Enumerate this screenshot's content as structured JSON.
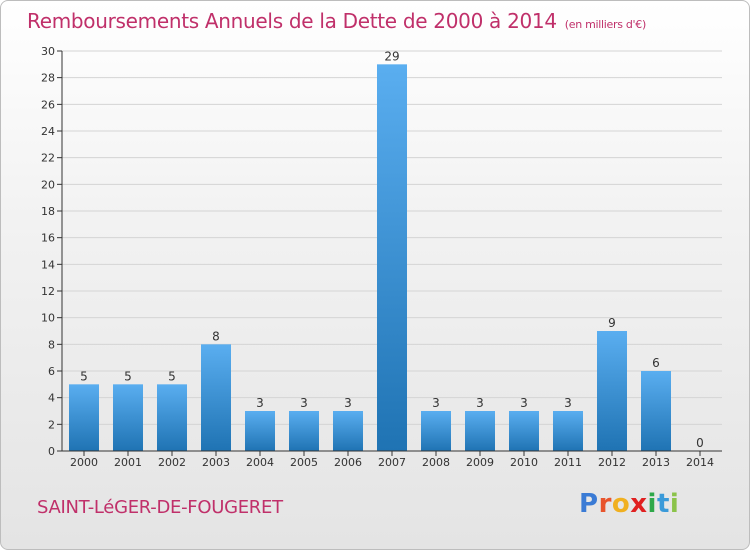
{
  "title": "Remboursements Annuels de la Dette de 2000 à 2014",
  "subtitle": "(en milliers d'€)",
  "place": "SAINT-LéGER-DE-FOUGERET",
  "logo": {
    "letters": [
      "P",
      "r",
      "o",
      "x",
      "i",
      "t",
      "i"
    ],
    "colors": [
      "#3a7bd5",
      "#e8542c",
      "#f0b020",
      "#e02020",
      "#2ea84a",
      "#3a9ad9",
      "#8bc34a"
    ]
  },
  "colors": {
    "bar_light": "#5aaef0",
    "bar_dark": "#1f73b3",
    "title": "#c0306a",
    "grid": "#d4d4d4",
    "axis": "#333333"
  },
  "chart_data": {
    "type": "bar",
    "title": "Remboursements Annuels de la Dette de 2000 à 2014",
    "subtitle": "(en milliers d'€)",
    "categories": [
      "2000",
      "2001",
      "2002",
      "2003",
      "2004",
      "2005",
      "2006",
      "2007",
      "2008",
      "2009",
      "2010",
      "2011",
      "2012",
      "2013",
      "2014"
    ],
    "values": [
      5,
      5,
      5,
      8,
      3,
      3,
      3,
      29,
      3,
      3,
      3,
      3,
      9,
      6,
      0
    ],
    "xlabel": "",
    "ylabel": "",
    "ylim": [
      0,
      30
    ],
    "yticks": [
      0,
      2,
      4,
      6,
      8,
      10,
      12,
      14,
      16,
      18,
      20,
      22,
      24,
      26,
      28,
      30
    ],
    "grid": true,
    "data_labels": true,
    "legend": "none"
  }
}
